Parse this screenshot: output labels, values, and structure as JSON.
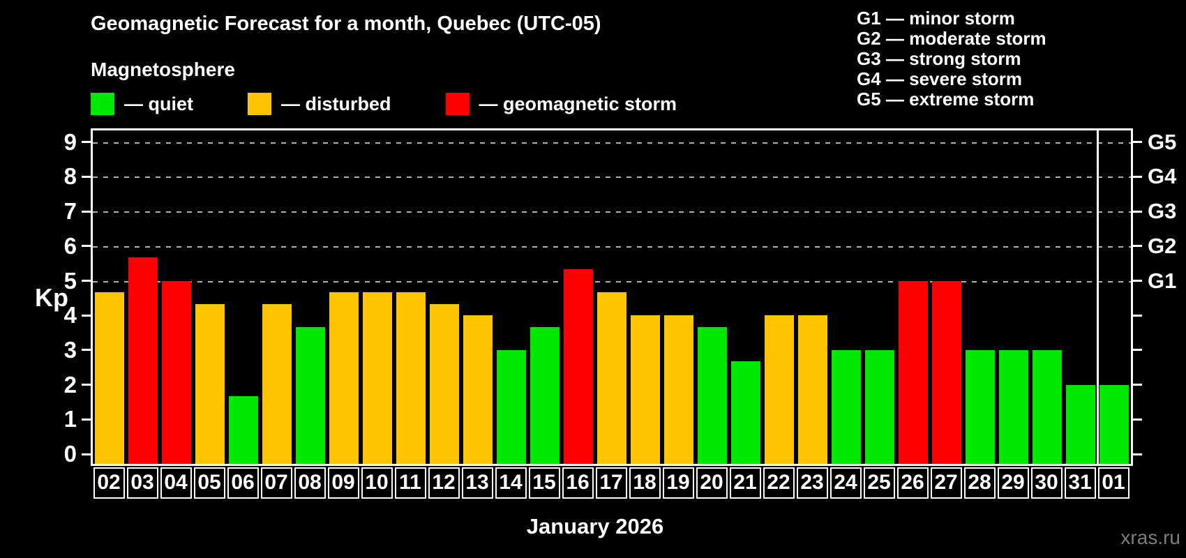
{
  "header": {
    "title": "Geomagnetic Forecast for a month, Quebec (UTC-05)",
    "subtitle": "Magnetosphere"
  },
  "legend": {
    "items": [
      {
        "label": "— quiet",
        "status": "quiet",
        "color": "#00e800"
      },
      {
        "label": "— disturbed",
        "status": "disturbed",
        "color": "#ffc400"
      },
      {
        "label": "— geomagnetic storm",
        "status": "storm",
        "color": "#ff0000"
      }
    ]
  },
  "storm_scale_legend": [
    "G1 — minor storm",
    "G2 — moderate storm",
    "G3 — strong storm",
    "G4 — severe storm",
    "G5 — extreme storm"
  ],
  "watermark": "xras.ru",
  "colors": {
    "background": "#000000",
    "axis": "#ffffff",
    "grid": "#b0b0b0",
    "watermark": "#7d7d7d",
    "quiet": "#00e800",
    "disturbed": "#ffc400",
    "storm": "#ff0000"
  },
  "chart_data": {
    "type": "bar",
    "title": "Geomagnetic Forecast for a month, Quebec (UTC-05)",
    "ylabel": "Kp",
    "xlabel": "January 2026",
    "ylim": [
      0,
      9
    ],
    "grid": "dashed horizontal at Kp 5-9 only",
    "legend_position": "top-left",
    "y_ticks": [
      0,
      1,
      2,
      3,
      4,
      5,
      6,
      7,
      8,
      9
    ],
    "gridlines_at_kp": [
      5,
      6,
      7,
      8,
      9
    ],
    "right_axis_labels": [
      {
        "kp": 5,
        "label": "G1"
      },
      {
        "kp": 6,
        "label": "G2"
      },
      {
        "kp": 7,
        "label": "G3"
      },
      {
        "kp": 8,
        "label": "G4"
      },
      {
        "kp": 9,
        "label": "G5"
      }
    ],
    "month_divider_after_index": 29,
    "categories": [
      "02",
      "03",
      "04",
      "05",
      "06",
      "07",
      "08",
      "09",
      "10",
      "11",
      "12",
      "13",
      "14",
      "15",
      "16",
      "17",
      "18",
      "19",
      "20",
      "21",
      "22",
      "23",
      "24",
      "25",
      "26",
      "27",
      "28",
      "29",
      "30",
      "31",
      "01"
    ],
    "values": [
      4.67,
      5.67,
      5.0,
      4.33,
      1.67,
      4.33,
      3.67,
      4.67,
      4.67,
      4.67,
      4.33,
      4.0,
      3.0,
      3.67,
      5.33,
      4.67,
      4.0,
      4.0,
      3.67,
      2.67,
      4.0,
      4.0,
      3.0,
      3.0,
      5.0,
      5.0,
      3.0,
      3.0,
      3.0,
      2.0,
      2.0
    ],
    "bars": [
      {
        "day": "02",
        "kp": 4.67,
        "status": "disturbed"
      },
      {
        "day": "03",
        "kp": 5.67,
        "status": "storm"
      },
      {
        "day": "04",
        "kp": 5.0,
        "status": "storm"
      },
      {
        "day": "05",
        "kp": 4.33,
        "status": "disturbed"
      },
      {
        "day": "06",
        "kp": 1.67,
        "status": "quiet"
      },
      {
        "day": "07",
        "kp": 4.33,
        "status": "disturbed"
      },
      {
        "day": "08",
        "kp": 3.67,
        "status": "quiet"
      },
      {
        "day": "09",
        "kp": 4.67,
        "status": "disturbed"
      },
      {
        "day": "10",
        "kp": 4.67,
        "status": "disturbed"
      },
      {
        "day": "11",
        "kp": 4.67,
        "status": "disturbed"
      },
      {
        "day": "12",
        "kp": 4.33,
        "status": "disturbed"
      },
      {
        "day": "13",
        "kp": 4.0,
        "status": "disturbed"
      },
      {
        "day": "14",
        "kp": 3.0,
        "status": "quiet"
      },
      {
        "day": "15",
        "kp": 3.67,
        "status": "quiet"
      },
      {
        "day": "16",
        "kp": 5.33,
        "status": "storm"
      },
      {
        "day": "17",
        "kp": 4.67,
        "status": "disturbed"
      },
      {
        "day": "18",
        "kp": 4.0,
        "status": "disturbed"
      },
      {
        "day": "19",
        "kp": 4.0,
        "status": "disturbed"
      },
      {
        "day": "20",
        "kp": 3.67,
        "status": "quiet"
      },
      {
        "day": "21",
        "kp": 2.67,
        "status": "quiet"
      },
      {
        "day": "22",
        "kp": 4.0,
        "status": "disturbed"
      },
      {
        "day": "23",
        "kp": 4.0,
        "status": "disturbed"
      },
      {
        "day": "24",
        "kp": 3.0,
        "status": "quiet"
      },
      {
        "day": "25",
        "kp": 3.0,
        "status": "quiet"
      },
      {
        "day": "26",
        "kp": 5.0,
        "status": "storm"
      },
      {
        "day": "27",
        "kp": 5.0,
        "status": "storm"
      },
      {
        "day": "28",
        "kp": 3.0,
        "status": "quiet"
      },
      {
        "day": "29",
        "kp": 3.0,
        "status": "quiet"
      },
      {
        "day": "30",
        "kp": 3.0,
        "status": "quiet"
      },
      {
        "day": "31",
        "kp": 2.0,
        "status": "quiet"
      },
      {
        "day": "01",
        "kp": 2.0,
        "status": "quiet"
      }
    ]
  }
}
